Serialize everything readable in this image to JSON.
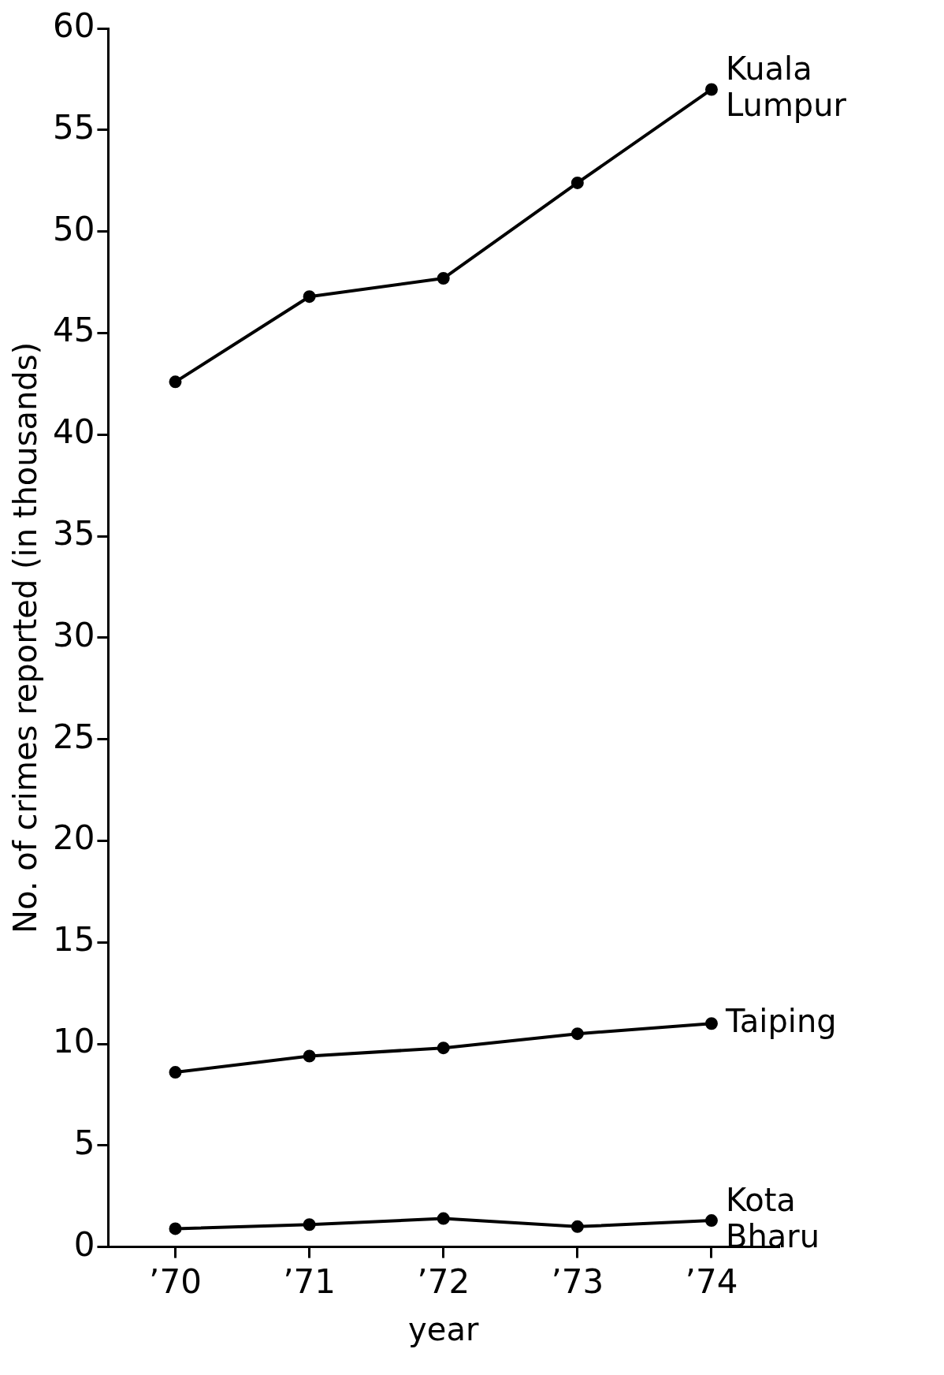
{
  "chart_data": {
    "type": "line",
    "xlabel": "year",
    "ylabel": "No. of crimes reported (in thousands)",
    "categories": [
      "’70",
      "’71",
      "’72",
      "’73",
      "’74"
    ],
    "series": [
      {
        "name": "Kuala Lumpur",
        "color": "#000000",
        "values": [
          42.6,
          46.8,
          47.7,
          52.4,
          57.0
        ]
      },
      {
        "name": "Taiping",
        "color": "#000000",
        "values": [
          8.6,
          9.4,
          9.8,
          10.5,
          11.0
        ]
      },
      {
        "name": "Kota Bharu",
        "color": "#000000",
        "values": [
          0.9,
          1.1,
          1.4,
          1.0,
          1.3
        ]
      }
    ],
    "ylim": [
      0,
      60
    ],
    "yticks": [
      0,
      5,
      10,
      15,
      20,
      25,
      30,
      35,
      40,
      45,
      50,
      55,
      60
    ],
    "legend": false,
    "marker": "circle",
    "line_style": "solid"
  }
}
